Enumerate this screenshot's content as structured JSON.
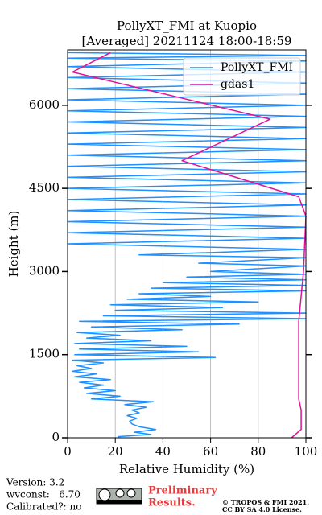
{
  "chart_data": {
    "type": "line",
    "title": "PollyXT_FMI at Kuopio",
    "subtitle": "[Averaged] 20211124 18:00-18:59",
    "xlabel": "Relative Humidity (%)",
    "ylabel": "Height (m)",
    "xlim": [
      0,
      100
    ],
    "xticks": [
      0,
      20,
      40,
      60,
      80,
      100
    ],
    "ylim": [
      0,
      7000
    ],
    "yticks": [
      0,
      1500,
      3000,
      4500,
      6000
    ],
    "grid": true,
    "legend": "upper right",
    "series": [
      {
        "name": "PollyXT_FMI",
        "color": "#1e90ff",
        "values": [
          21,
          35,
          28,
          37,
          30,
          27,
          26,
          29,
          25,
          30,
          27,
          33,
          24,
          36,
          10,
          22,
          8,
          20,
          7,
          15,
          5,
          18,
          3,
          12,
          2,
          10,
          4,
          15,
          2,
          62,
          3,
          55,
          5,
          50,
          3,
          35,
          8,
          22,
          4,
          48,
          10,
          72,
          5,
          100,
          15,
          100,
          20,
          65,
          18,
          80,
          25,
          60,
          30,
          100,
          35,
          100,
          40,
          100,
          50,
          100,
          60,
          100,
          55,
          100,
          30,
          100,
          0,
          100,
          0,
          100,
          0,
          100,
          0,
          100,
          0,
          100,
          0,
          100,
          0,
          100,
          0,
          100,
          0,
          100,
          0,
          100,
          0,
          100,
          0,
          100,
          0,
          100,
          0,
          100,
          0,
          100,
          0,
          100,
          0,
          100,
          0,
          100,
          0
        ],
        "heights": [
          20,
          60,
          100,
          150,
          200,
          250,
          300,
          350,
          400,
          450,
          500,
          550,
          600,
          650,
          700,
          750,
          800,
          850,
          900,
          950,
          1000,
          1050,
          1100,
          1150,
          1200,
          1250,
          1300,
          1350,
          1400,
          1450,
          1500,
          1550,
          1600,
          1650,
          1700,
          1750,
          1800,
          1850,
          1900,
          1950,
          2000,
          2050,
          2100,
          2150,
          2200,
          2250,
          2300,
          2350,
          2400,
          2450,
          2500,
          2550,
          2600,
          2650,
          2700,
          2750,
          2800,
          2850,
          2900,
          2950,
          3000,
          3100,
          3150,
          3250,
          3300,
          3400,
          3500,
          3600,
          3700,
          3800,
          3900,
          4000,
          4100,
          4200,
          4300,
          4400,
          4500,
          4600,
          4700,
          4800,
          4900,
          5000,
          5100,
          5200,
          5300,
          5400,
          5500,
          5600,
          5700,
          5800,
          5900,
          6000,
          6100,
          6200,
          6300,
          6400,
          6500,
          6600,
          6700,
          6800,
          6850,
          6900,
          6950
        ]
      },
      {
        "name": "gdas1",
        "color": "#e0139a",
        "values": [
          94,
          98,
          98,
          97,
          97,
          97,
          99,
          100,
          97,
          48,
          85,
          2,
          18
        ],
        "heights": [
          0,
          150,
          500,
          700,
          1500,
          2100,
          3000,
          4000,
          4350,
          5000,
          5750,
          6600,
          6950
        ]
      }
    ],
    "footer": {
      "version": "Version: 3.2",
      "wvconst": "wvconst:   6.70",
      "calibrated": "Calibrated?: no",
      "preliminary": "Preliminary",
      "results": "Results.",
      "copyright": "© TROPOS & FMI 2021.",
      "license": "CC BY SA 4.0 License."
    }
  }
}
